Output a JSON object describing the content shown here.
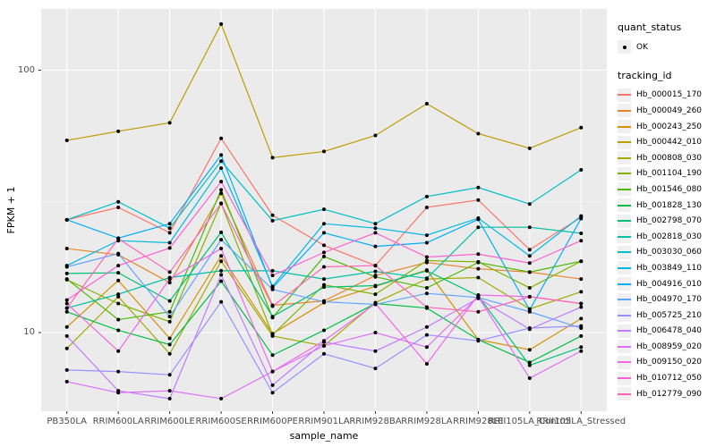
{
  "figure": {
    "x_axis_title": "sample_name",
    "y_axis_title": "FPKM + 1"
  },
  "legend": {
    "quant_status_title": "quant_status",
    "quant_ok_label": "OK",
    "tracking_title": "tracking_id"
  },
  "chart_data": {
    "type": "line",
    "title": "",
    "xlabel": "sample_name",
    "ylabel": "FPKM + 1",
    "y_scale": "log10",
    "ylim": [
      5,
      180
    ],
    "yticks": [
      100,
      10
    ],
    "y_minor_ticks": [
      31.62
    ],
    "grid": true,
    "legend_position": "right",
    "panel_bg": "#EBEBEB",
    "grid_color": "#FFFFFF",
    "marker_color": "#000000",
    "axis_text_color": "#4D4D4D",
    "categories": [
      "PB350LA",
      "RRIM600LA",
      "RRIM600LE",
      "RRIM600SE",
      "RRIM600PE",
      "RRIM901LA",
      "RRIM928BA",
      "RRIM928LA",
      "RRIM928LE",
      "RRII105LA_Control",
      "RRII105LA_Stressed"
    ],
    "series": [
      {
        "name": "Hb_000015_170",
        "color": "#F8766D",
        "values": [
          26.9,
          30,
          24,
          55,
          28,
          21.5,
          18,
          30,
          32,
          20.7,
          27.5
        ]
      },
      {
        "name": "Hb_000049_260",
        "color": "#E9842C",
        "values": [
          20.9,
          19.8,
          15.5,
          33.9,
          12.7,
          13.2,
          16.5,
          18.5,
          17.5,
          17,
          16
        ]
      },
      {
        "name": "Hb_000243_250",
        "color": "#D69100",
        "values": [
          10.5,
          15.8,
          9.5,
          19.6,
          9.9,
          13,
          15,
          17.3,
          9.4,
          8.6,
          11.3
        ]
      },
      {
        "name": "Hb_000442_010",
        "color": "#BC9D00",
        "values": [
          54,
          58.5,
          63,
          150,
          46.4,
          49,
          56.4,
          74.5,
          57.3,
          50.4,
          60.4
        ]
      },
      {
        "name": "Hb_000808_030",
        "color": "#A2AA00",
        "values": [
          8.7,
          13.7,
          8.3,
          18.7,
          9.7,
          8.9,
          13,
          16,
          16.2,
          12.3,
          14.3
        ]
      },
      {
        "name": "Hb_001104_190",
        "color": "#82B300",
        "values": [
          15.9,
          12.9,
          11,
          31.1,
          9.8,
          15.2,
          14,
          18.8,
          18.6,
          14.8,
          18.7
        ]
      },
      {
        "name": "Hb_001546_080",
        "color": "#4CB900",
        "values": [
          16,
          11.2,
          12,
          35,
          11.4,
          19.5,
          16.3,
          14.8,
          18.5,
          17,
          18.7
        ]
      },
      {
        "name": "Hb_001828_130",
        "color": "#00BE44",
        "values": [
          12,
          10.2,
          9,
          15.7,
          8.2,
          10.2,
          12.9,
          12.4,
          9.4,
          7.7,
          9.7
        ]
      },
      {
        "name": "Hb_002798_070",
        "color": "#00C077",
        "values": [
          16.8,
          16.9,
          13.2,
          24.1,
          11.5,
          14.9,
          15.1,
          17.2,
          13.8,
          7.5,
          8.8
        ]
      },
      {
        "name": "Hb_002818_030",
        "color": "#00C0A2",
        "values": [
          12.4,
          14,
          16.2,
          17.2,
          17.2,
          16,
          17.1,
          16.1,
          25.2,
          25.2,
          23.9
        ]
      },
      {
        "name": "Hb_003030_060",
        "color": "#00BEC6",
        "values": [
          26.9,
          31.5,
          25,
          45,
          26.7,
          29.5,
          26,
          33,
          35.7,
          30.9,
          41.7
        ]
      },
      {
        "name": "Hb_003849_110",
        "color": "#00B9E3",
        "values": [
          18,
          22.4,
          22,
          42.3,
          15,
          26,
          25,
          23.5,
          27.3,
          19.6,
          27.8
        ]
      },
      {
        "name": "Hb_004916_010",
        "color": "#00AFF8",
        "values": [
          26.9,
          22.9,
          26,
          47.5,
          14.8,
          24,
          21.3,
          22,
          27,
          12.2,
          27.2
        ]
      },
      {
        "name": "Hb_004970_170",
        "color": "#61A4FF",
        "values": [
          17.8,
          20,
          11.5,
          22.6,
          14.6,
          13.1,
          12.8,
          14.1,
          13.6,
          12,
          10.4
        ]
      },
      {
        "name": "Hb_005725_210",
        "color": "#9A8FFF",
        "values": [
          7.2,
          7.1,
          6.9,
          13.1,
          5.9,
          8.3,
          7.3,
          9.8,
          9.3,
          10.4,
          10.6
        ]
      },
      {
        "name": "Hb_006478_040",
        "color": "#C17BFF",
        "values": [
          9.7,
          6,
          5.6,
          16.6,
          6.3,
          9.2,
          8.5,
          10.5,
          13.5,
          10.3,
          12.5
        ]
      },
      {
        "name": "Hb_008959_020",
        "color": "#DF70F8",
        "values": [
          6.5,
          5.9,
          6,
          5.6,
          7.1,
          8.9,
          10,
          8.8,
          13.7,
          6.7,
          8.5
        ]
      },
      {
        "name": "Hb_009150_020",
        "color": "#F166E8",
        "values": [
          12.9,
          8.5,
          16,
          20.9,
          7.1,
          9.3,
          12.9,
          7.6,
          13.9,
          13.7,
          12.9
        ]
      },
      {
        "name": "Hb_010712_050",
        "color": "#FC61D3",
        "values": [
          13.3,
          18,
          21,
          37.6,
          16.5,
          20.2,
          24,
          19.4,
          19.9,
          18.4,
          22.4
        ]
      },
      {
        "name": "Hb_012779_090",
        "color": "#FF65B9",
        "values": [
          12.4,
          22.8,
          17,
          31,
          12.6,
          17.8,
          18,
          12.5,
          12,
          13.7,
          12.9
        ]
      }
    ]
  }
}
